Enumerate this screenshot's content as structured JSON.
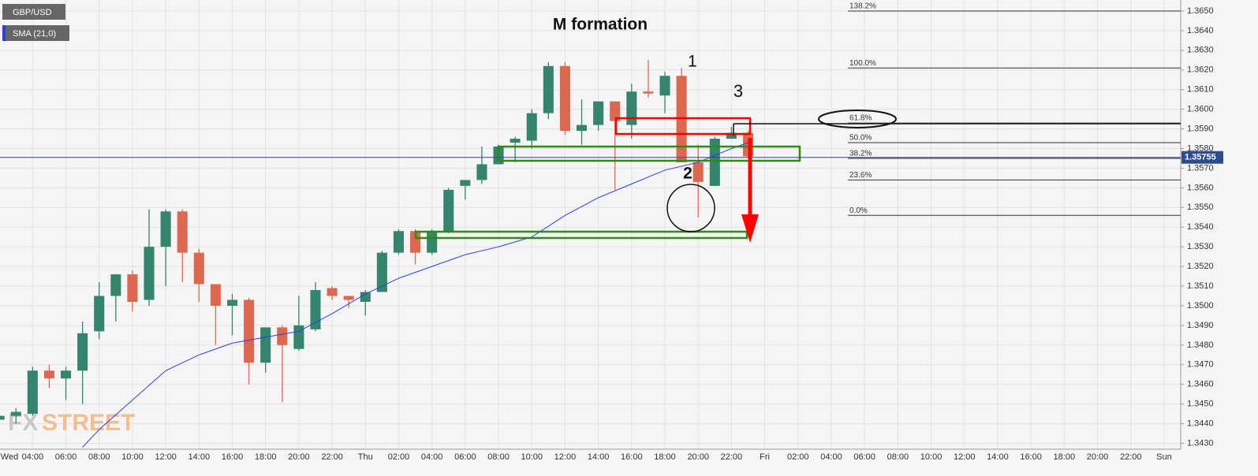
{
  "chart_data": {
    "type": "candlestick",
    "title": "M formation",
    "symbol": "GBP/USD",
    "watermark": [
      "FX",
      "STREET"
    ],
    "annotations": [
      "1",
      "2",
      "3"
    ],
    "up_color": "#35856e",
    "down_color": "#dc6852",
    "candles": [
      {
        "x": 2,
        "open": 1.3442,
        "high": 1.3446,
        "low": 1.344,
        "close": 1.3444
      },
      {
        "x": 3,
        "open": 1.3444,
        "high": 1.3448,
        "low": 1.344,
        "close": 1.3446
      },
      {
        "x": 4,
        "open": 1.3445,
        "high": 1.3469,
        "low": 1.3444,
        "close": 1.3467
      },
      {
        "x": 5,
        "open": 1.3467,
        "high": 1.347,
        "low": 1.3458,
        "close": 1.3463
      },
      {
        "x": 6,
        "open": 1.3463,
        "high": 1.3469,
        "low": 1.3452,
        "close": 1.3467
      },
      {
        "x": 7,
        "open": 1.3467,
        "high": 1.3492,
        "low": 1.345,
        "close": 1.3486
      },
      {
        "x": 8,
        "open": 1.3487,
        "high": 1.3512,
        "low": 1.3483,
        "close": 1.3505
      },
      {
        "x": 9,
        "open": 1.3505,
        "high": 1.3516,
        "low": 1.3492,
        "close": 1.3516
      },
      {
        "x": 10,
        "open": 1.3516,
        "high": 1.3518,
        "low": 1.3497,
        "close": 1.3502
      },
      {
        "x": 11,
        "open": 1.3503,
        "high": 1.3549,
        "low": 1.35,
        "close": 1.353
      },
      {
        "x": 12,
        "open": 1.353,
        "high": 1.3549,
        "low": 1.351,
        "close": 1.3548
      },
      {
        "x": 13,
        "open": 1.3548,
        "high": 1.3549,
        "low": 1.3512,
        "close": 1.3527
      },
      {
        "x": 14,
        "open": 1.3527,
        "high": 1.3529,
        "low": 1.3502,
        "close": 1.3511
      },
      {
        "x": 15,
        "open": 1.3511,
        "high": 1.3511,
        "low": 1.348,
        "close": 1.35
      },
      {
        "x": 16,
        "open": 1.35,
        "high": 1.3506,
        "low": 1.3485,
        "close": 1.3503
      },
      {
        "x": 17,
        "open": 1.3503,
        "high": 1.3504,
        "low": 1.346,
        "close": 1.3471
      },
      {
        "x": 18,
        "open": 1.3471,
        "high": 1.3489,
        "low": 1.3466,
        "close": 1.3489
      },
      {
        "x": 19,
        "open": 1.3489,
        "high": 1.349,
        "low": 1.3451,
        "close": 1.348
      },
      {
        "x": 20,
        "open": 1.3478,
        "high": 1.3505,
        "low": 1.3477,
        "close": 1.349
      },
      {
        "x": 21,
        "open": 1.3488,
        "high": 1.3512,
        "low": 1.3487,
        "close": 1.3508
      },
      {
        "x": 22,
        "open": 1.3509,
        "high": 1.351,
        "low": 1.3503,
        "close": 1.3505
      },
      {
        "x": 23,
        "open": 1.3505,
        "high": 1.3505,
        "low": 1.3499,
        "close": 1.3503
      },
      {
        "x": 24,
        "open": 1.3502,
        "high": 1.3508,
        "low": 1.3495,
        "close": 1.3507
      },
      {
        "x": 25,
        "open": 1.3507,
        "high": 1.3528,
        "low": 1.3507,
        "close": 1.3527
      },
      {
        "x": 26,
        "open": 1.3527,
        "high": 1.3539,
        "low": 1.3526,
        "close": 1.3538
      },
      {
        "x": 27,
        "open": 1.3538,
        "high": 1.3539,
        "low": 1.3521,
        "close": 1.3527
      },
      {
        "x": 28,
        "open": 1.3527,
        "high": 1.3539,
        "low": 1.3526,
        "close": 1.3538
      },
      {
        "x": 29,
        "open": 1.3538,
        "high": 1.356,
        "low": 1.3537,
        "close": 1.3559
      },
      {
        "x": 30,
        "open": 1.3561,
        "high": 1.3564,
        "low": 1.3554,
        "close": 1.3564
      },
      {
        "x": 31,
        "open": 1.3564,
        "high": 1.3581,
        "low": 1.3562,
        "close": 1.3572
      },
      {
        "x": 32,
        "open": 1.3572,
        "high": 1.3582,
        "low": 1.3572,
        "close": 1.3581
      },
      {
        "x": 33,
        "open": 1.3583,
        "high": 1.3586,
        "low": 1.3573,
        "close": 1.3585
      },
      {
        "x": 34,
        "open": 1.3584,
        "high": 1.36,
        "low": 1.358,
        "close": 1.3598
      },
      {
        "x": 35,
        "open": 1.3598,
        "high": 1.3624,
        "low": 1.3595,
        "close": 1.3622
      },
      {
        "x": 36,
        "open": 1.3622,
        "high": 1.3624,
        "low": 1.3587,
        "close": 1.3589
      },
      {
        "x": 37,
        "open": 1.3589,
        "high": 1.3605,
        "low": 1.3582,
        "close": 1.3592
      },
      {
        "x": 38,
        "open": 1.3592,
        "high": 1.3604,
        "low": 1.3589,
        "close": 1.3604
      },
      {
        "x": 39,
        "open": 1.3604,
        "high": 1.3604,
        "low": 1.3559,
        "close": 1.3594
      },
      {
        "x": 40,
        "open": 1.3592,
        "high": 1.3613,
        "low": 1.3585,
        "close": 1.3609
      },
      {
        "x": 41,
        "open": 1.3609,
        "high": 1.3625,
        "low": 1.3606,
        "close": 1.3608
      },
      {
        "x": 42,
        "open": 1.3607,
        "high": 1.3619,
        "low": 1.3598,
        "close": 1.3617
      },
      {
        "x": 43,
        "open": 1.3617,
        "high": 1.3621,
        "low": 1.3573,
        "close": 1.3573
      },
      {
        "x": 44,
        "open": 1.3573,
        "high": 1.3582,
        "low": 1.3545,
        "close": 1.3563
      },
      {
        "x": 45,
        "open": 1.3561,
        "high": 1.3586,
        "low": 1.3561,
        "close": 1.3585
      },
      {
        "x": 46,
        "open": 1.3585,
        "high": 1.3591,
        "low": 1.3585,
        "close": 1.3588
      },
      {
        "x": 47,
        "open": 1.3588,
        "high": 1.3589,
        "low": 1.3575,
        "close": 1.3576
      }
    ],
    "series": [
      {
        "name": "SMA (21,0)",
        "color": "#2b3fe0",
        "x": [
          7,
          8,
          10,
          12,
          14,
          16,
          18,
          20,
          22,
          24,
          26,
          28,
          30,
          32,
          34,
          36,
          38,
          40,
          42,
          44,
          46,
          47
        ],
        "values": [
          1.3428,
          1.3437,
          1.3452,
          1.3467,
          1.3475,
          1.3481,
          1.3484,
          1.3487,
          1.3496,
          1.3506,
          1.3514,
          1.352,
          1.3526,
          1.353,
          1.3535,
          1.3546,
          1.3555,
          1.3562,
          1.3569,
          1.3573,
          1.358,
          1.3583
        ]
      }
    ],
    "last_price": 1.35755,
    "fibonacci": [
      {
        "level": 138.2,
        "label": "138.2%",
        "price": 1.365
      },
      {
        "level": 100,
        "label": "100.0%",
        "price": 1.3621
      },
      {
        "level": 61.8,
        "label": "61.8%",
        "price": 1.3593
      },
      {
        "level": 50,
        "label": "50.0%",
        "price": 1.3583
      },
      {
        "level": 38.2,
        "label": "38.2%",
        "price": 1.3575
      },
      {
        "level": 23.6,
        "label": "23.6%",
        "price": 1.3564
      },
      {
        "level": 0,
        "label": "0.0%",
        "price": 1.3546
      }
    ],
    "xlim": [
      2.04,
      73
    ],
    "ylim": [
      1.3427,
      1.36556
    ],
    "yticks": [
      {
        "value": 1.343,
        "label": "1.3430"
      },
      {
        "value": 1.344,
        "label": "1.3440"
      },
      {
        "value": 1.345,
        "label": "1.3450"
      },
      {
        "value": 1.346,
        "label": "1.3460"
      },
      {
        "value": 1.347,
        "label": "1.3470"
      },
      {
        "value": 1.348,
        "label": "1.3480"
      },
      {
        "value": 1.349,
        "label": "1.3490"
      },
      {
        "value": 1.35,
        "label": "1.3500"
      },
      {
        "value": 1.351,
        "label": "1.3510"
      },
      {
        "value": 1.352,
        "label": "1.3520"
      },
      {
        "value": 1.353,
        "label": "1.3530"
      },
      {
        "value": 1.354,
        "label": "1.3540"
      },
      {
        "value": 1.355,
        "label": "1.3550"
      },
      {
        "value": 1.356,
        "label": "1.3560"
      },
      {
        "value": 1.357,
        "label": "1.3570"
      },
      {
        "value": 1.358,
        "label": "1.3580"
      },
      {
        "value": 1.359,
        "label": "1.3590"
      },
      {
        "value": 1.36,
        "label": "1.3600"
      },
      {
        "value": 1.361,
        "label": "1.3610"
      },
      {
        "value": 1.362,
        "label": "1.3620"
      },
      {
        "value": 1.363,
        "label": "1.3630"
      },
      {
        "value": 1.364,
        "label": "1.3640"
      },
      {
        "value": 1.365,
        "label": "1.3650"
      }
    ],
    "xticks": [
      {
        "value": 0,
        "label": "Wed"
      },
      {
        "value": 4,
        "label": "04:00"
      },
      {
        "value": 6,
        "label": "06:00"
      },
      {
        "value": 8,
        "label": "08:00"
      },
      {
        "value": 10,
        "label": "10:00"
      },
      {
        "value": 12,
        "label": "12:00"
      },
      {
        "value": 14,
        "label": "14:00"
      },
      {
        "value": 16,
        "label": "16:00"
      },
      {
        "value": 18,
        "label": "18:00"
      },
      {
        "value": 20,
        "label": "20:00"
      },
      {
        "value": 22,
        "label": "22:00"
      },
      {
        "value": 24,
        "label": "Thu"
      },
      {
        "value": 26,
        "label": "02:00"
      },
      {
        "value": 28,
        "label": "04:00"
      },
      {
        "value": 30,
        "label": "06:00"
      },
      {
        "value": 32,
        "label": "08:00"
      },
      {
        "value": 34,
        "label": "10:00"
      },
      {
        "value": 36,
        "label": "12:00"
      },
      {
        "value": 38,
        "label": "14:00"
      },
      {
        "value": 40,
        "label": "16:00"
      },
      {
        "value": 42,
        "label": "18:00"
      },
      {
        "value": 44,
        "label": "20:00"
      },
      {
        "value": 46,
        "label": "22:00"
      },
      {
        "value": 48,
        "label": "Fri"
      },
      {
        "value": 50,
        "label": "02:00"
      },
      {
        "value": 52,
        "label": "04:00"
      },
      {
        "value": 54,
        "label": "06:00"
      },
      {
        "value": 56,
        "label": "08:00"
      },
      {
        "value": 58,
        "label": "10:00"
      },
      {
        "value": 60,
        "label": "12:00"
      },
      {
        "value": 62,
        "label": "14:00"
      },
      {
        "value": 64,
        "label": "16:00"
      },
      {
        "value": 66,
        "label": "18:00"
      },
      {
        "value": 68,
        "label": "20:00"
      },
      {
        "value": 70,
        "label": "22:00"
      },
      {
        "value": 72,
        "label": "Sun"
      }
    ],
    "grid": true
  }
}
